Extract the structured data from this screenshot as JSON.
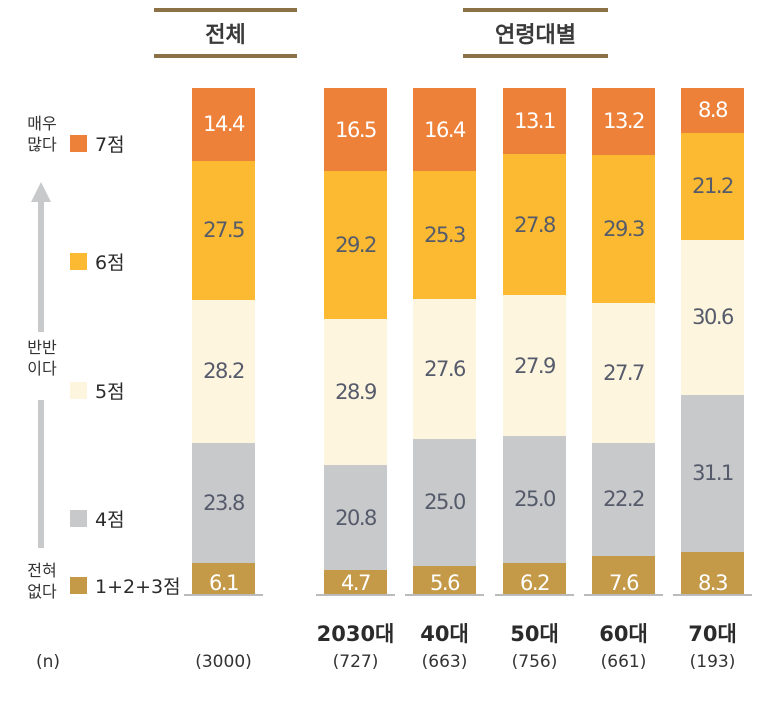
{
  "headers": {
    "overall": "전체",
    "by_age": "연령대별"
  },
  "side_labels": {
    "top": [
      "매우",
      "많다"
    ],
    "middle": [
      "반반",
      "이다"
    ],
    "bottom": [
      "전혀",
      "없다"
    ]
  },
  "n_label": "(n)",
  "colors": {
    "7점": "#ED8139",
    "6점": "#FBBA31",
    "5점": "#FEF5DF",
    "4점": "#C8C9CB",
    "1+2+3점": "#C49A48",
    "arrow": "#C8C9CB",
    "rule": "#8B7145"
  },
  "chart_data": {
    "type": "bar",
    "stacked": true,
    "percent": true,
    "categories": [
      "전체",
      "2030대",
      "40대",
      "50대",
      "60대",
      "70대"
    ],
    "n": [
      "(3000)",
      "(727)",
      "(663)",
      "(756)",
      "(661)",
      "(193)"
    ],
    "series": [
      {
        "name": "1+2+3점",
        "values": [
          6.1,
          4.7,
          5.6,
          6.2,
          7.6,
          8.3
        ]
      },
      {
        "name": "4점",
        "values": [
          23.8,
          20.8,
          25.0,
          25.0,
          22.2,
          31.1
        ]
      },
      {
        "name": "5점",
        "values": [
          28.2,
          28.9,
          27.6,
          27.9,
          27.7,
          30.6
        ]
      },
      {
        "name": "6점",
        "values": [
          27.5,
          29.2,
          25.3,
          27.8,
          29.3,
          21.2
        ]
      },
      {
        "name": "7점",
        "values": [
          14.4,
          16.5,
          16.4,
          13.1,
          13.2,
          8.8
        ]
      }
    ],
    "legend": "left"
  }
}
